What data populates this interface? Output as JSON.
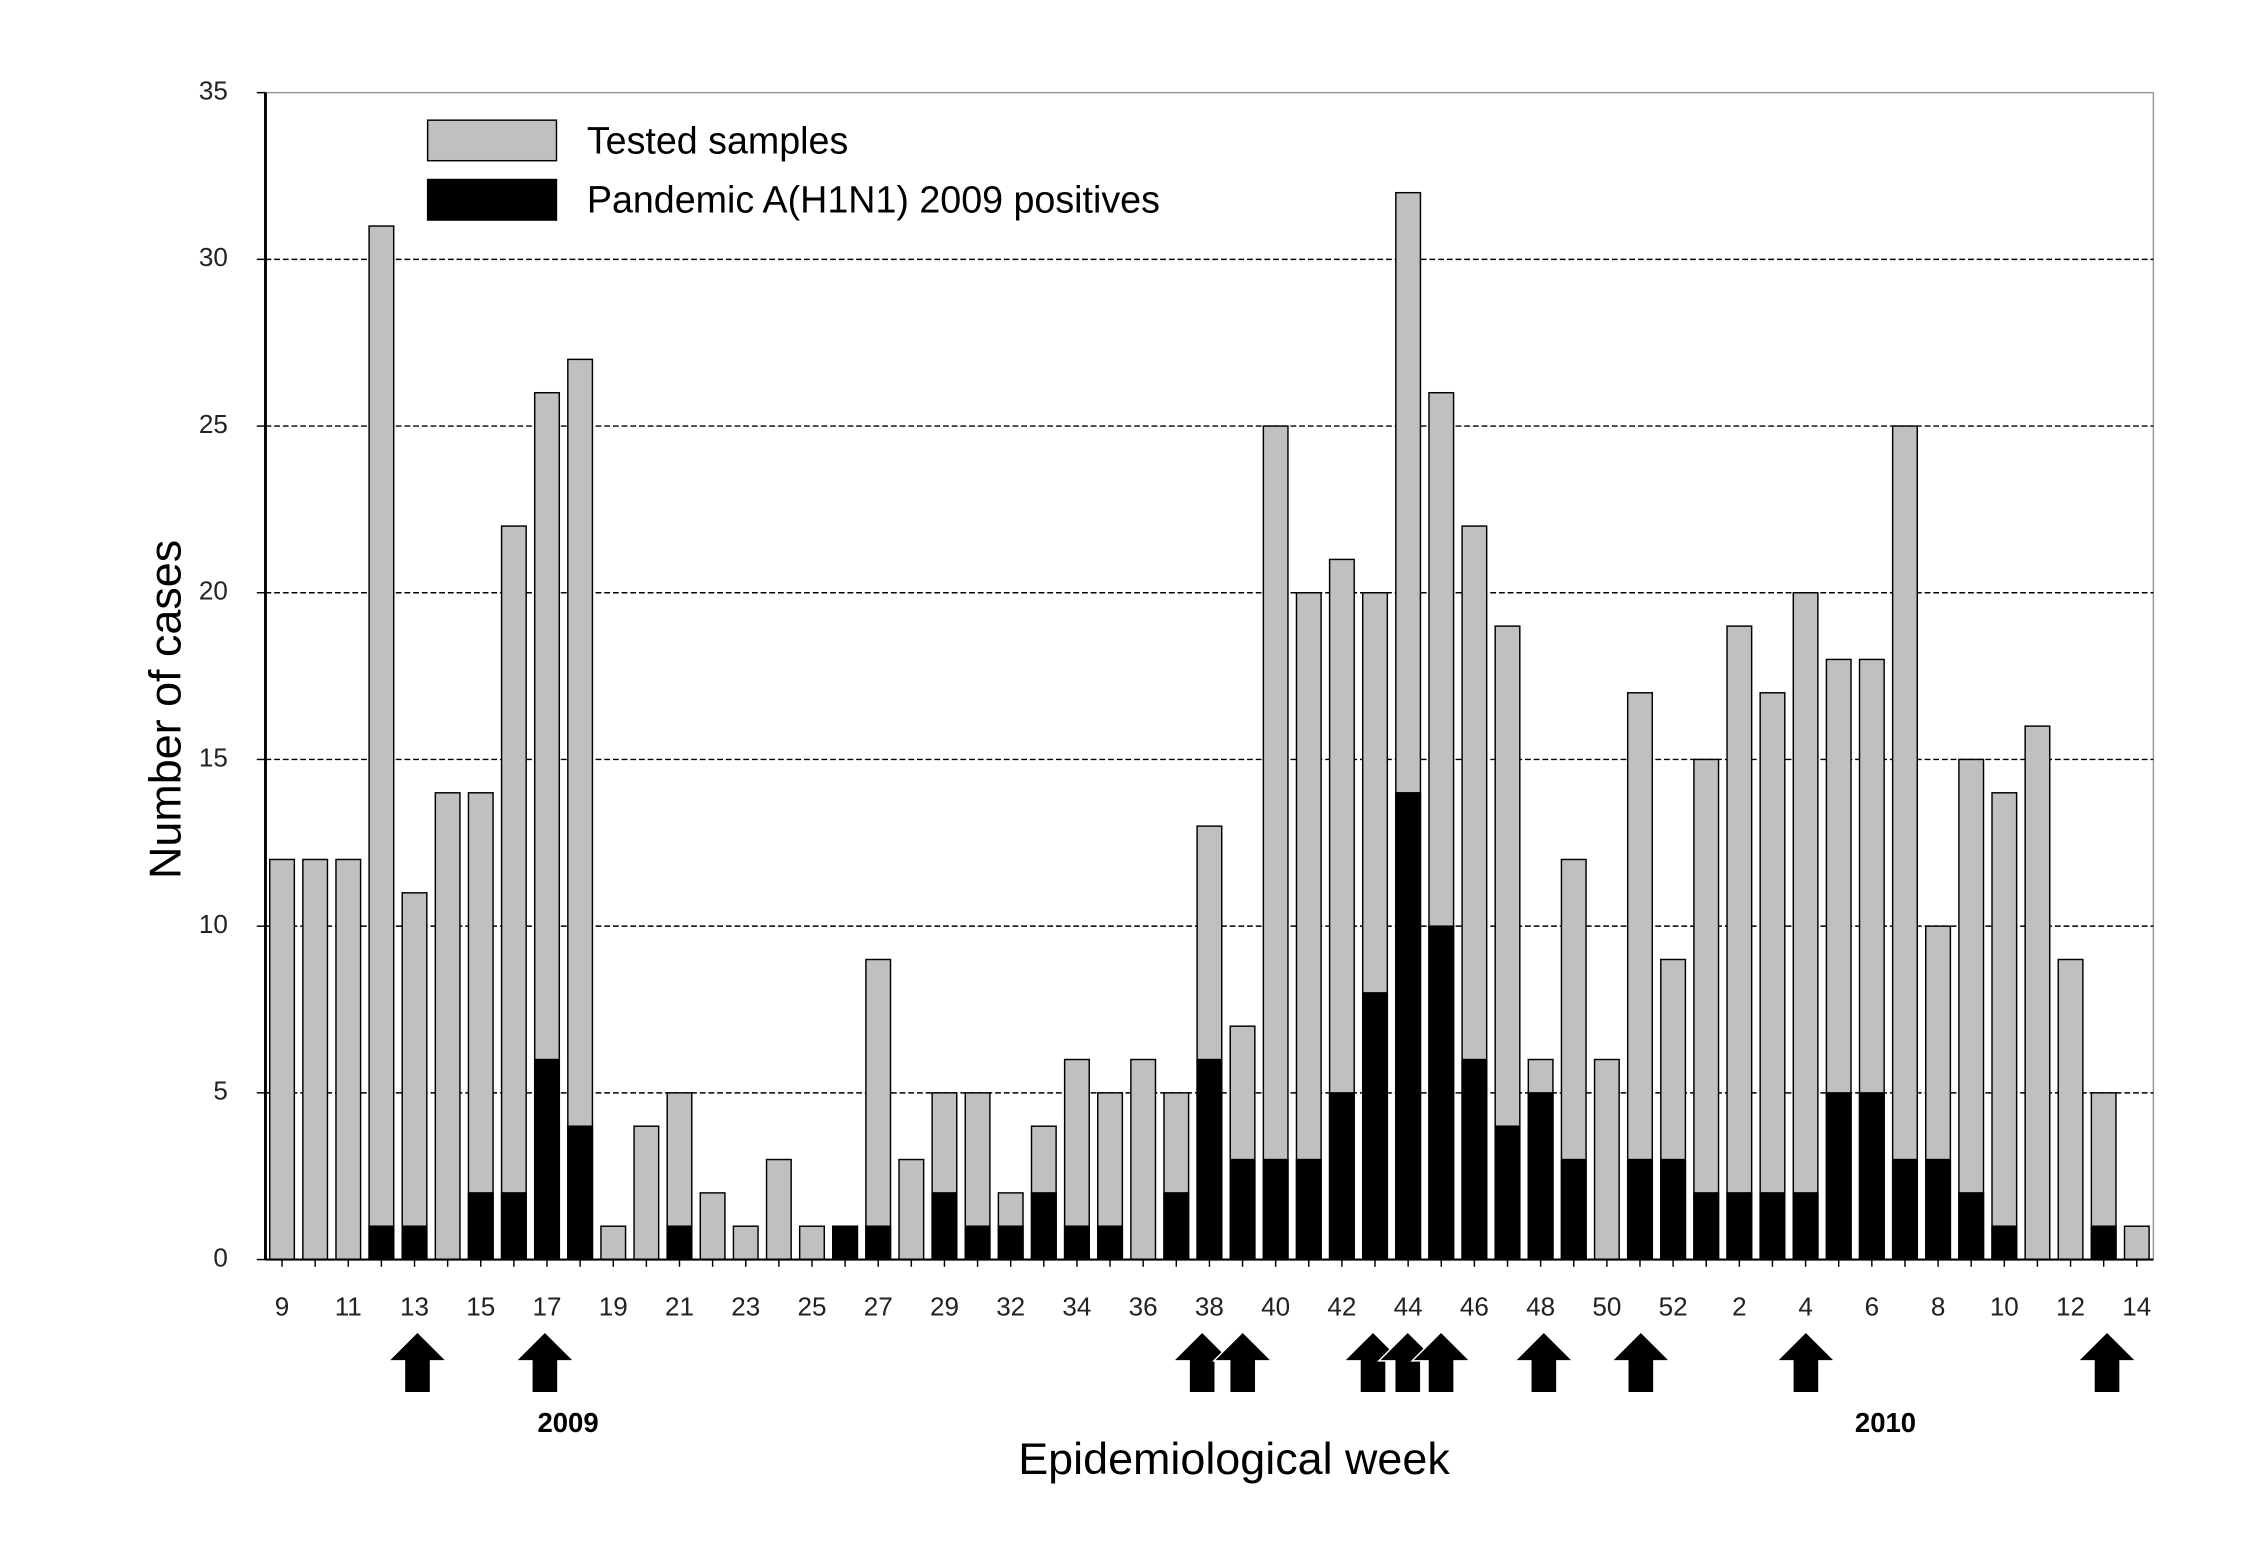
{
  "chart_data": {
    "type": "bar",
    "xlabel": "Epidemiological week",
    "ylabel": "Number of cases",
    "categories": [
      "9",
      null,
      "11",
      null,
      "13",
      null,
      "15",
      null,
      "17",
      null,
      "19",
      null,
      "21",
      null,
      "23",
      null,
      "25",
      null,
      "27",
      null,
      "29",
      null,
      "32",
      null,
      "34",
      null,
      "36",
      null,
      "38",
      null,
      "40",
      null,
      "42",
      null,
      "44",
      null,
      "46",
      null,
      "48",
      null,
      "50",
      null,
      "52",
      null,
      "2",
      null,
      "4",
      null,
      "6",
      null,
      "8",
      null,
      "10",
      null,
      "12",
      null,
      "14"
    ],
    "series": [
      {
        "name": "Tested samples",
        "color": "#c0c0c0",
        "values": [
          12,
          12,
          12,
          31,
          11,
          14,
          14,
          22,
          26,
          27,
          1,
          4,
          5,
          2,
          1,
          3,
          1,
          1,
          9,
          3,
          5,
          5,
          2,
          4,
          6,
          5,
          6,
          5,
          13,
          7,
          25,
          20,
          21,
          20,
          32,
          26,
          22,
          19,
          6,
          12,
          6,
          17,
          9,
          15,
          19,
          17,
          20,
          18,
          18,
          25,
          10,
          15,
          14,
          16,
          9,
          5,
          1
        ]
      },
      {
        "name": "Pandemic A(H1N1) 2009 positives",
        "color": "#000000",
        "values": [
          0,
          0,
          0,
          1,
          1,
          0,
          2,
          2,
          6,
          4,
          0,
          0,
          1,
          0,
          0,
          0,
          0,
          1,
          1,
          0,
          2,
          1,
          1,
          2,
          1,
          1,
          0,
          2,
          6,
          3,
          3,
          3,
          5,
          8,
          14,
          10,
          6,
          4,
          5,
          3,
          0,
          3,
          3,
          2,
          2,
          2,
          2,
          5,
          5,
          3,
          3,
          2,
          1,
          0,
          0,
          1,
          0
        ]
      }
    ],
    "annotations": [
      "2009",
      "2010"
    ],
    "ylim": [
      0,
      35
    ],
    "yticks": [
      0,
      5,
      10,
      15,
      20,
      25,
      30,
      35
    ],
    "grid": true
  }
}
